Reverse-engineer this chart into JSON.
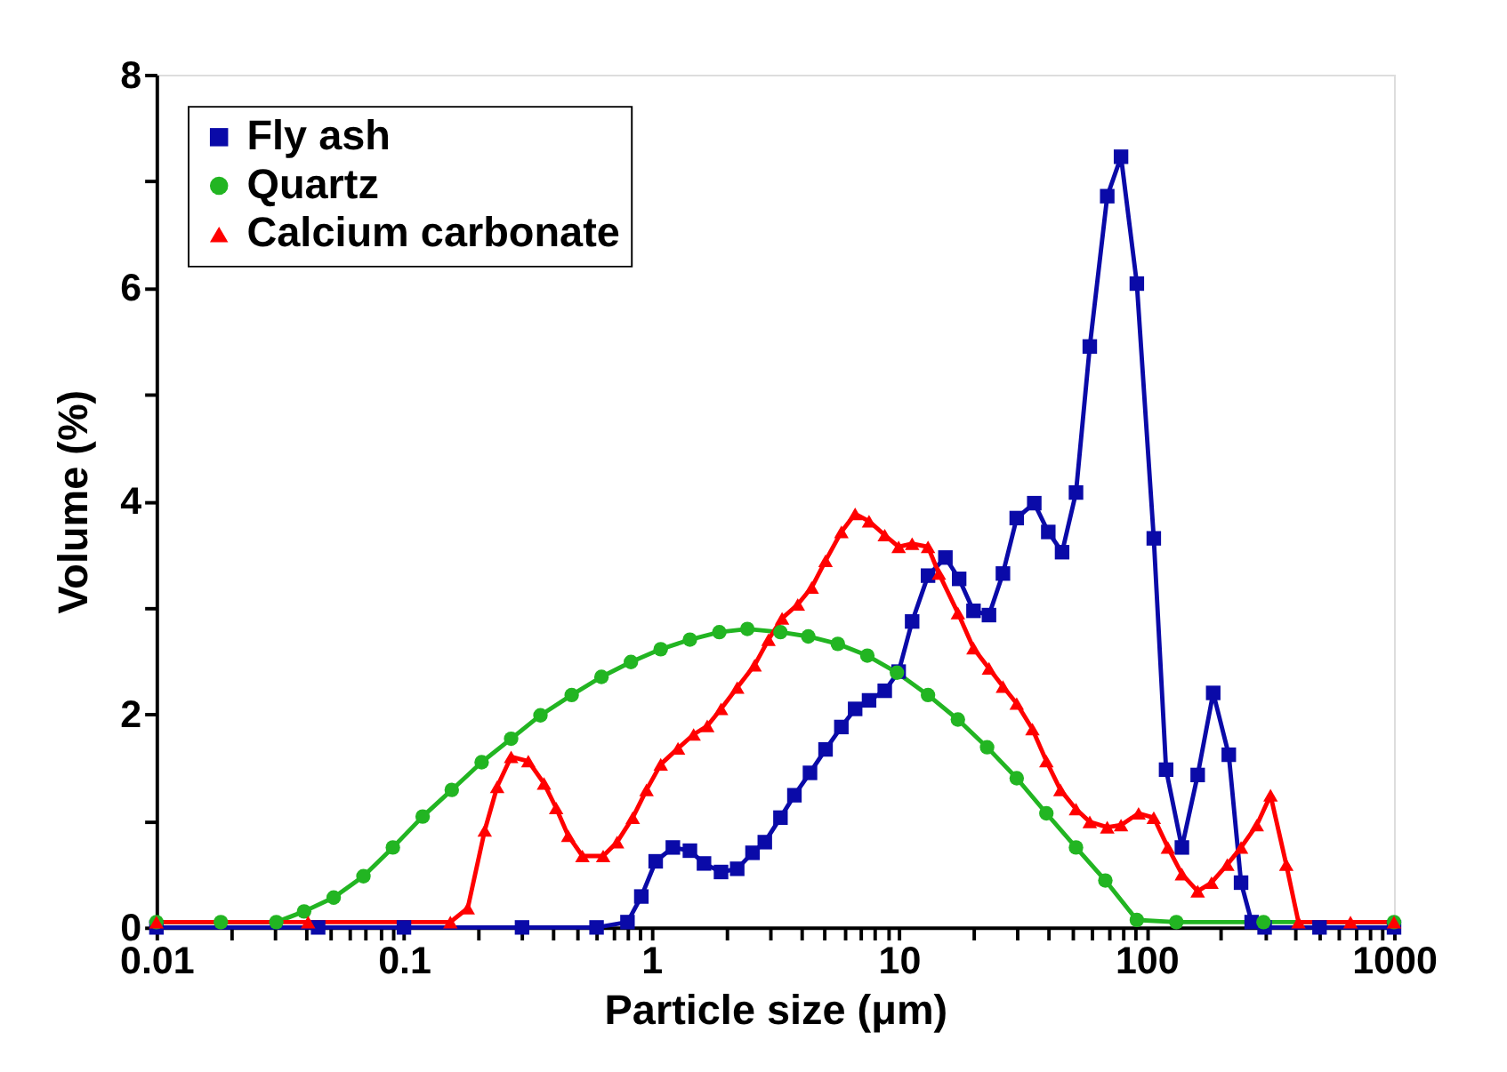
{
  "chart_data": {
    "type": "line",
    "xlabel": "Particle size (μm)",
    "ylabel": "Volume (%)",
    "log": "x",
    "grid": false,
    "line_style": "solid",
    "legend": "top left",
    "xlim": [
      0.01,
      1000
    ],
    "ylim": [
      0,
      8
    ],
    "xticks": [
      0.01,
      {
        "value": 0.02,
        "label": null
      },
      {
        "value": 0.03,
        "label": null
      },
      {
        "value": 0.04,
        "label": null
      },
      {
        "value": 0.05,
        "label": null
      },
      {
        "value": 0.06,
        "label": null
      },
      {
        "value": 0.07,
        "label": null
      },
      {
        "value": 0.08,
        "label": null
      },
      {
        "value": 0.09,
        "label": null
      },
      0.1,
      {
        "value": 0.2,
        "label": null
      },
      {
        "value": 0.3,
        "label": null
      },
      {
        "value": 0.4,
        "label": null
      },
      {
        "value": 0.5,
        "label": null
      },
      {
        "value": 0.6,
        "label": null
      },
      {
        "value": 0.7,
        "label": null
      },
      {
        "value": 0.8,
        "label": null
      },
      {
        "value": 0.9,
        "label": null
      },
      1,
      {
        "value": 2,
        "label": null
      },
      {
        "value": 3,
        "label": null
      },
      {
        "value": 4,
        "label": null
      },
      {
        "value": 5,
        "label": null
      },
      {
        "value": 6,
        "label": null
      },
      {
        "value": 7,
        "label": null
      },
      {
        "value": 8,
        "label": null
      },
      {
        "value": 9,
        "label": null
      },
      10,
      {
        "value": 20,
        "label": null
      },
      {
        "value": 30,
        "label": null
      },
      {
        "value": 40,
        "label": null
      },
      {
        "value": 50,
        "label": null
      },
      {
        "value": 60,
        "label": null
      },
      {
        "value": 70,
        "label": null
      },
      {
        "value": 80,
        "label": null
      },
      {
        "value": 90,
        "label": null
      },
      100,
      {
        "value": 200,
        "label": null
      },
      {
        "value": 300,
        "label": null
      },
      {
        "value": 400,
        "label": null
      },
      {
        "value": 500,
        "label": null
      },
      {
        "value": 600,
        "label": null
      },
      {
        "value": 700,
        "label": null
      },
      {
        "value": 800,
        "label": null
      },
      {
        "value": 900,
        "label": null
      },
      1000
    ],
    "yticks": [
      0,
      {
        "value": 1,
        "label": null
      },
      2,
      {
        "value": 3,
        "label": null
      },
      4,
      {
        "value": 5,
        "label": null
      },
      6,
      {
        "value": 7,
        "label": null
      },
      8
    ],
    "series": [
      {
        "name": "Fly ash",
        "color": "#0a0aa8",
        "marker": "square",
        "x": [
          0.01,
          0.045,
          0.1,
          0.3,
          0.6,
          0.8,
          0.91,
          1.04,
          1.22,
          1.43,
          1.63,
          1.91,
          2.22,
          2.56,
          2.87,
          3.32,
          3.78,
          4.37,
          5.05,
          5.85,
          6.65,
          7.57,
          8.76,
          9.97,
          11.3,
          13.1,
          15.4,
          17.5,
          20.0,
          23.1,
          26.3,
          29.9,
          35.2,
          40.1,
          45.6,
          51.9,
          59.0,
          69.4,
          78.9,
          91.4,
          107,
          120,
          139,
          161,
          186,
          215,
          241,
          266,
          300,
          500,
          1000
        ],
        "values": [
          0,
          0,
          0,
          0,
          0,
          0.05,
          0.29,
          0.62,
          0.75,
          0.72,
          0.6,
          0.52,
          0.55,
          0.7,
          0.8,
          1.03,
          1.24,
          1.45,
          1.67,
          1.88,
          2.05,
          2.13,
          2.22,
          2.4,
          2.87,
          3.3,
          3.47,
          3.27,
          2.97,
          2.93,
          3.32,
          3.84,
          3.98,
          3.71,
          3.52,
          4.08,
          5.45,
          6.86,
          7.23,
          6.04,
          3.65,
          1.48,
          0.75,
          1.43,
          2.2,
          1.62,
          0.42,
          0.05,
          0,
          0,
          0
        ]
      },
      {
        "name": "Quartz",
        "color": "#22b522",
        "marker": "circle",
        "x": [
          0.01,
          0.0182,
          0.0305,
          0.0395,
          0.052,
          0.0686,
          0.0902,
          0.119,
          0.156,
          0.206,
          0.271,
          0.356,
          0.476,
          0.628,
          0.826,
          1.09,
          1.43,
          1.88,
          2.44,
          3.32,
          4.3,
          5.66,
          7.45,
          9.81,
          13.1,
          17.3,
          22.7,
          29.9,
          39.4,
          51.9,
          68.2,
          91.4,
          132,
          297,
          1000
        ],
        "values": [
          0.05,
          0.05,
          0.05,
          0.15,
          0.28,
          0.48,
          0.75,
          1.04,
          1.29,
          1.55,
          1.77,
          1.99,
          2.18,
          2.35,
          2.49,
          2.61,
          2.7,
          2.77,
          2.8,
          2.77,
          2.73,
          2.66,
          2.55,
          2.39,
          2.18,
          1.95,
          1.69,
          1.4,
          1.07,
          0.75,
          0.44,
          0.07,
          0.05,
          0.05,
          0.05
        ]
      },
      {
        "name": "Calcium carbonate",
        "color": "#ff0000",
        "marker": "triangle",
        "x": [
          0.01,
          0.041,
          0.154,
          0.181,
          0.212,
          0.238,
          0.271,
          0.318,
          0.368,
          0.412,
          0.461,
          0.526,
          0.638,
          0.726,
          0.84,
          0.955,
          1.09,
          1.28,
          1.48,
          1.68,
          1.91,
          2.22,
          2.61,
          2.97,
          3.37,
          3.9,
          4.44,
          5.05,
          5.85,
          6.65,
          7.57,
          8.76,
          9.97,
          11.3,
          13.1,
          14.5,
          17.3,
          20.0,
          23.1,
          26.3,
          29.9,
          34.6,
          39.4,
          44.9,
          51.9,
          59.0,
          69.4,
          78.9,
          92.9,
          107,
          122,
          139,
          161,
          183,
          212,
          241,
          279,
          317,
          367,
          411,
          667,
          1000
        ],
        "values": [
          0.05,
          0.05,
          0.05,
          0.18,
          0.91,
          1.32,
          1.6,
          1.56,
          1.35,
          1.12,
          0.86,
          0.67,
          0.67,
          0.8,
          1.03,
          1.29,
          1.53,
          1.68,
          1.81,
          1.89,
          2.05,
          2.25,
          2.46,
          2.7,
          2.9,
          3.03,
          3.19,
          3.44,
          3.71,
          3.88,
          3.81,
          3.68,
          3.57,
          3.6,
          3.57,
          3.32,
          2.95,
          2.62,
          2.43,
          2.26,
          2.1,
          1.86,
          1.56,
          1.29,
          1.11,
          0.99,
          0.94,
          0.96,
          1.07,
          1.03,
          0.75,
          0.5,
          0.34,
          0.42,
          0.59,
          0.75,
          0.96,
          1.24,
          0.59,
          0.05,
          0.05,
          0.05
        ]
      }
    ]
  }
}
